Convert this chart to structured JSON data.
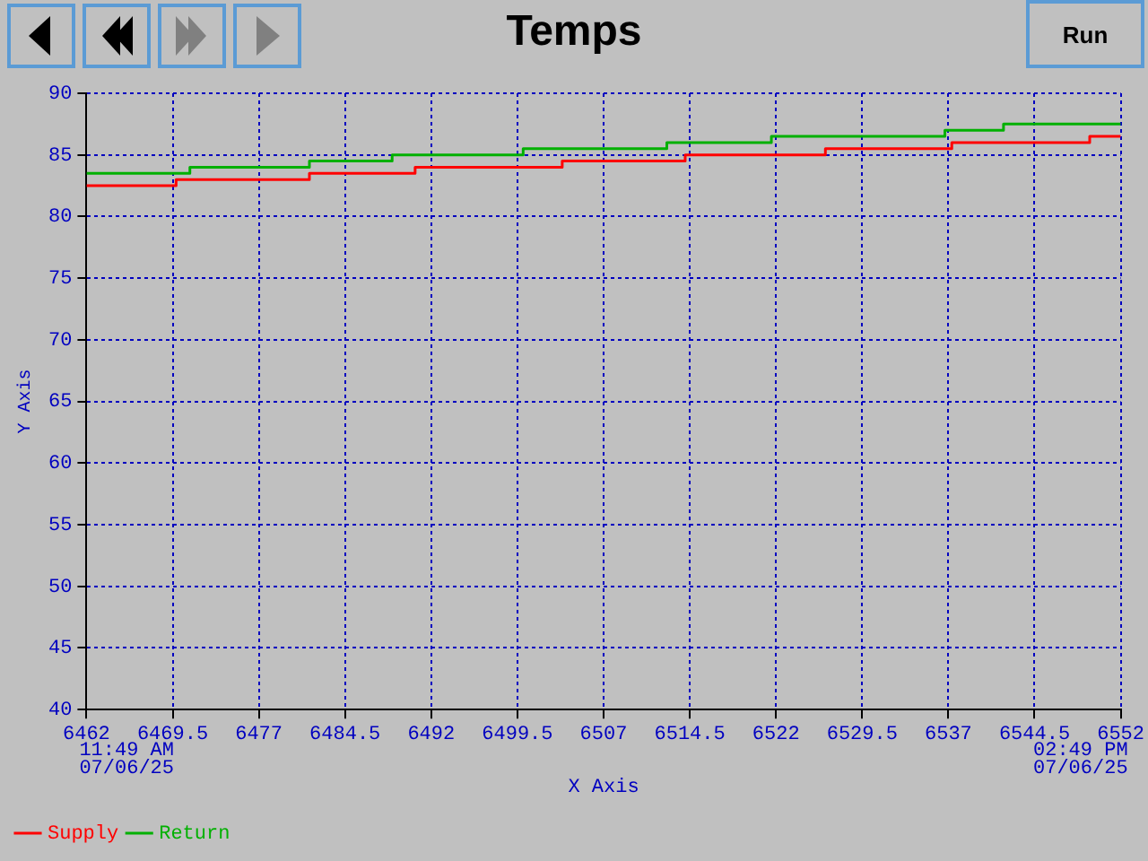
{
  "chart_data": {
    "type": "step",
    "title": "Temps",
    "xlabel": "X Axis",
    "ylabel": "Y Axis",
    "xlim": [
      6462,
      6552
    ],
    "xticks": [
      6462,
      6469.5,
      6477,
      6484.5,
      6492,
      6499.5,
      6507,
      6514.5,
      6522,
      6529.5,
      6537,
      6544.5,
      6552
    ],
    "ylim": [
      40,
      90
    ],
    "yticks": [
      40,
      45,
      50,
      55,
      60,
      65,
      70,
      75,
      80,
      85,
      90
    ],
    "grid": true,
    "legend": "bottom left",
    "annotations": [
      "11:49 AM 07/06/25",
      "02:49 PM 07/06/25",
      "Run"
    ],
    "series": [
      {
        "name": "Supply",
        "color": "#ff0000",
        "x": [
          6462,
          6469.8,
          6481.4,
          6490.6,
          6503.4,
          6514.1,
          6526.3,
          6537.3,
          6549.3,
          6552
        ],
        "values": [
          82.5,
          83,
          83.5,
          84,
          84.5,
          85,
          85.5,
          86,
          86.5,
          86.5
        ]
      },
      {
        "name": "Return",
        "color": "#00b000",
        "x": [
          6462,
          6471,
          6481.4,
          6488.6,
          6500,
          6512.5,
          6521.6,
          6536.7,
          6541.8,
          6552
        ],
        "values": [
          83.5,
          84,
          84.5,
          85,
          85.5,
          86,
          86.5,
          87,
          87.5,
          87.5
        ]
      }
    ]
  }
}
